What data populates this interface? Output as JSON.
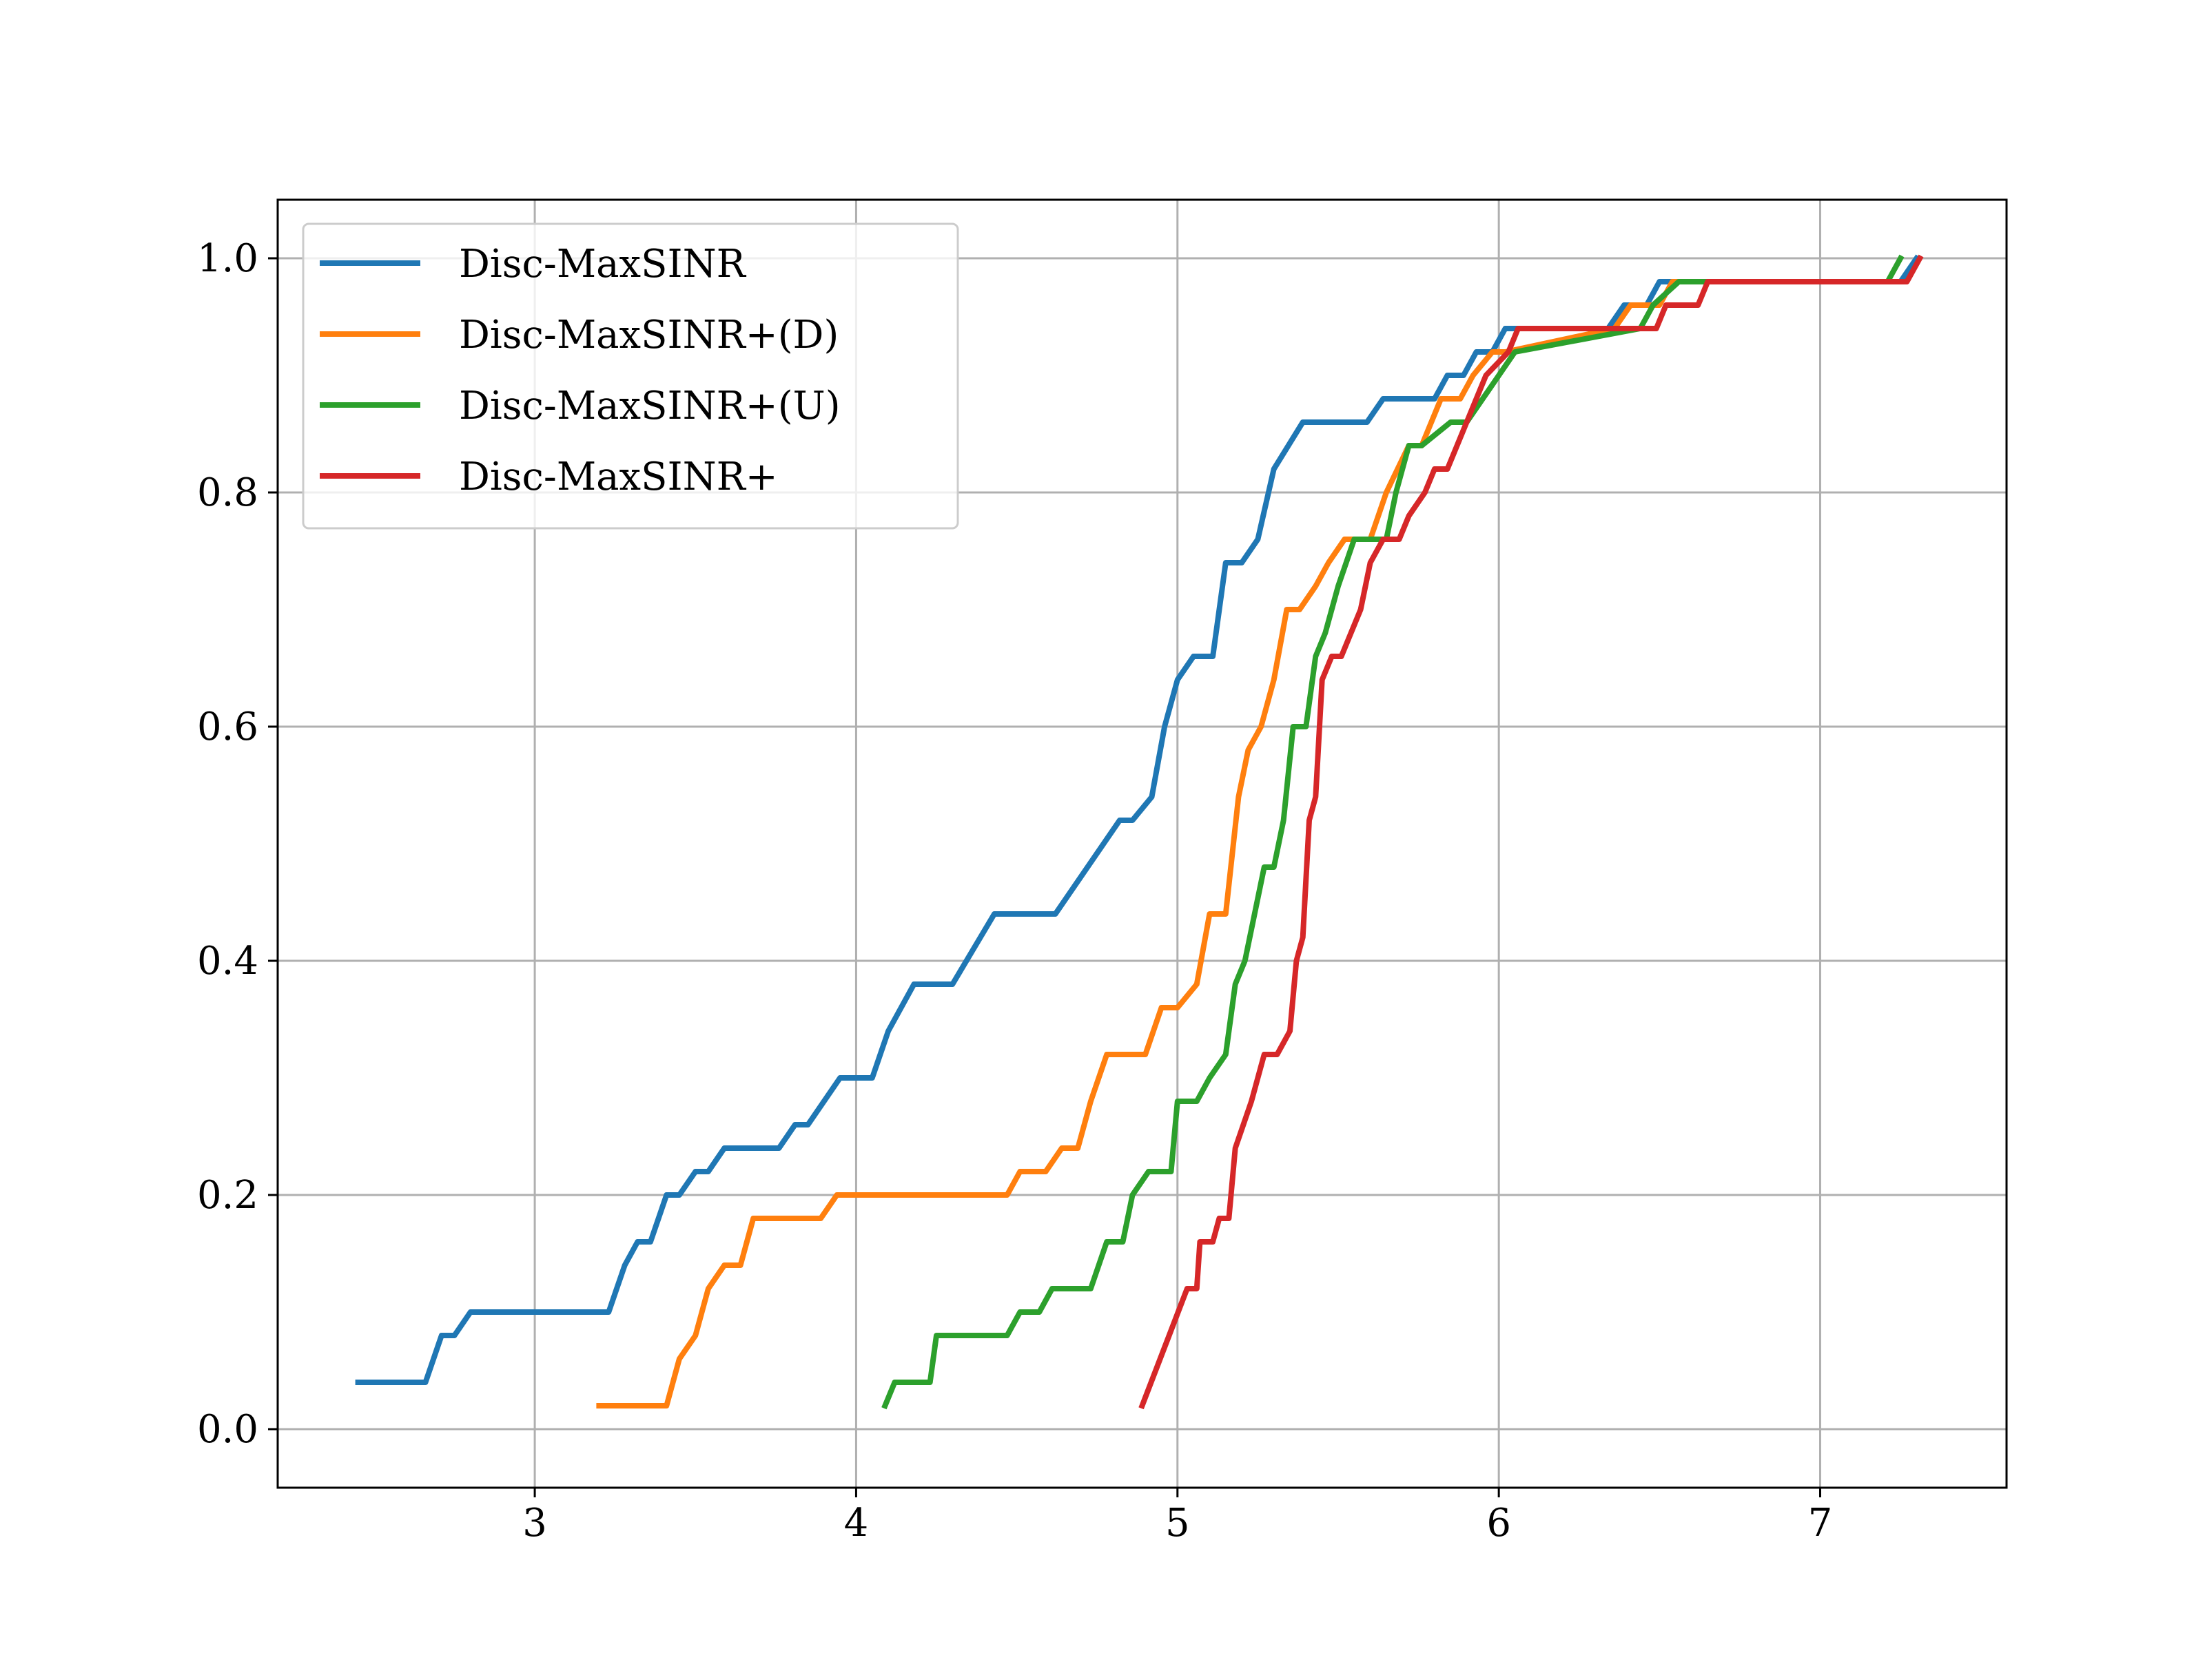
{
  "chart_data": {
    "type": "line",
    "title": "",
    "xlabel": "",
    "ylabel": "",
    "xlim": [
      2.2,
      7.58
    ],
    "ylim": [
      -0.05,
      1.05
    ],
    "xticks": [
      "3",
      "4",
      "5",
      "6",
      "7"
    ],
    "xtick_values": [
      3,
      4,
      5,
      6,
      7
    ],
    "yticks": [
      "0.0",
      "0.2",
      "0.4",
      "0.6",
      "0.8",
      "1.0"
    ],
    "ytick_values": [
      0,
      0.2,
      0.4,
      0.6,
      0.8,
      1.0
    ],
    "grid": true,
    "legend_position": "upper-left",
    "series": [
      {
        "name": "Disc-MaxSINR",
        "color": "#1f77b4",
        "x": [
          2.45,
          2.66,
          2.71,
          2.75,
          2.8,
          3.23,
          3.28,
          3.32,
          3.36,
          3.41,
          3.45,
          3.5,
          3.54,
          3.59,
          3.76,
          3.81,
          3.85,
          3.95,
          4.05,
          4.1,
          4.18,
          4.3,
          4.43,
          4.62,
          4.82,
          4.86,
          4.92,
          4.96,
          5.0,
          5.05,
          5.11,
          5.15,
          5.2,
          5.25,
          5.3,
          5.39,
          5.59,
          5.64,
          5.8,
          5.84,
          5.89,
          5.93,
          5.98,
          6.02,
          6.34,
          6.39,
          6.46,
          6.5,
          7.25,
          7.3
        ],
        "y": [
          0.04,
          0.04,
          0.08,
          0.08,
          0.1,
          0.1,
          0.14,
          0.16,
          0.16,
          0.2,
          0.2,
          0.22,
          0.22,
          0.24,
          0.24,
          0.26,
          0.26,
          0.3,
          0.3,
          0.34,
          0.38,
          0.38,
          0.44,
          0.44,
          0.52,
          0.52,
          0.54,
          0.6,
          0.64,
          0.66,
          0.66,
          0.74,
          0.74,
          0.76,
          0.82,
          0.86,
          0.86,
          0.88,
          0.88,
          0.9,
          0.9,
          0.92,
          0.92,
          0.94,
          0.94,
          0.96,
          0.96,
          0.98,
          0.98,
          1.0
        ]
      },
      {
        "name": "Disc-MaxSINR+(D)",
        "color": "#ff7f0e",
        "x": [
          3.2,
          3.41,
          3.45,
          3.5,
          3.54,
          3.59,
          3.64,
          3.68,
          3.89,
          3.94,
          4.47,
          4.51,
          4.59,
          4.64,
          4.69,
          4.73,
          4.78,
          4.85,
          4.9,
          4.95,
          5.0,
          5.06,
          5.1,
          5.15,
          5.19,
          5.22,
          5.26,
          5.3,
          5.34,
          5.38,
          5.43,
          5.47,
          5.52,
          5.6,
          5.65,
          5.72,
          5.76,
          5.82,
          5.88,
          5.92,
          5.98,
          6.02,
          6.36,
          6.41,
          6.5,
          6.54,
          7.2
        ],
        "y": [
          0.02,
          0.02,
          0.06,
          0.08,
          0.12,
          0.14,
          0.14,
          0.18,
          0.18,
          0.2,
          0.2,
          0.22,
          0.22,
          0.24,
          0.24,
          0.28,
          0.32,
          0.32,
          0.32,
          0.36,
          0.36,
          0.38,
          0.44,
          0.44,
          0.54,
          0.58,
          0.6,
          0.64,
          0.7,
          0.7,
          0.72,
          0.74,
          0.76,
          0.76,
          0.8,
          0.84,
          0.84,
          0.88,
          0.88,
          0.9,
          0.92,
          0.92,
          0.94,
          0.96,
          0.96,
          0.98,
          0.98
        ]
      },
      {
        "name": "Disc-MaxSINR+(U)",
        "color": "#2ca02c",
        "x": [
          4.09,
          4.12,
          4.23,
          4.25,
          4.47,
          4.51,
          4.57,
          4.61,
          4.73,
          4.78,
          4.83,
          4.86,
          4.91,
          4.94,
          4.98,
          5.0,
          5.06,
          5.1,
          5.15,
          5.18,
          5.21,
          5.24,
          5.27,
          5.3,
          5.33,
          5.36,
          5.4,
          5.43,
          5.46,
          5.5,
          5.55,
          5.59,
          5.65,
          5.68,
          5.72,
          5.76,
          5.85,
          5.9,
          5.95,
          6.05,
          6.44,
          6.48,
          6.56,
          6.61,
          7.21,
          7.25
        ],
        "y": [
          0.02,
          0.04,
          0.04,
          0.08,
          0.08,
          0.1,
          0.1,
          0.12,
          0.12,
          0.16,
          0.16,
          0.2,
          0.22,
          0.22,
          0.22,
          0.28,
          0.28,
          0.3,
          0.32,
          0.38,
          0.4,
          0.44,
          0.48,
          0.48,
          0.52,
          0.6,
          0.6,
          0.66,
          0.68,
          0.72,
          0.76,
          0.76,
          0.76,
          0.8,
          0.84,
          0.84,
          0.86,
          0.86,
          0.88,
          0.92,
          0.94,
          0.96,
          0.98,
          0.98,
          0.98,
          1.0
        ]
      },
      {
        "name": "Disc-MaxSINR+",
        "color": "#d62728",
        "x": [
          4.89,
          5.03,
          5.06,
          5.07,
          5.11,
          5.13,
          5.16,
          5.18,
          5.23,
          5.27,
          5.31,
          5.35,
          5.37,
          5.39,
          5.41,
          5.43,
          5.45,
          5.48,
          5.51,
          5.57,
          5.6,
          5.64,
          5.69,
          5.72,
          5.77,
          5.8,
          5.84,
          5.87,
          5.9,
          5.93,
          5.96,
          6.03,
          6.06,
          6.49,
          6.52,
          6.62,
          6.65,
          7.27,
          7.31
        ],
        "y": [
          0.02,
          0.12,
          0.12,
          0.16,
          0.16,
          0.18,
          0.18,
          0.24,
          0.28,
          0.32,
          0.32,
          0.34,
          0.4,
          0.42,
          0.52,
          0.54,
          0.64,
          0.66,
          0.66,
          0.7,
          0.74,
          0.76,
          0.76,
          0.78,
          0.8,
          0.82,
          0.82,
          0.84,
          0.86,
          0.88,
          0.9,
          0.92,
          0.94,
          0.94,
          0.96,
          0.96,
          0.98,
          0.98,
          1.0
        ]
      }
    ]
  }
}
